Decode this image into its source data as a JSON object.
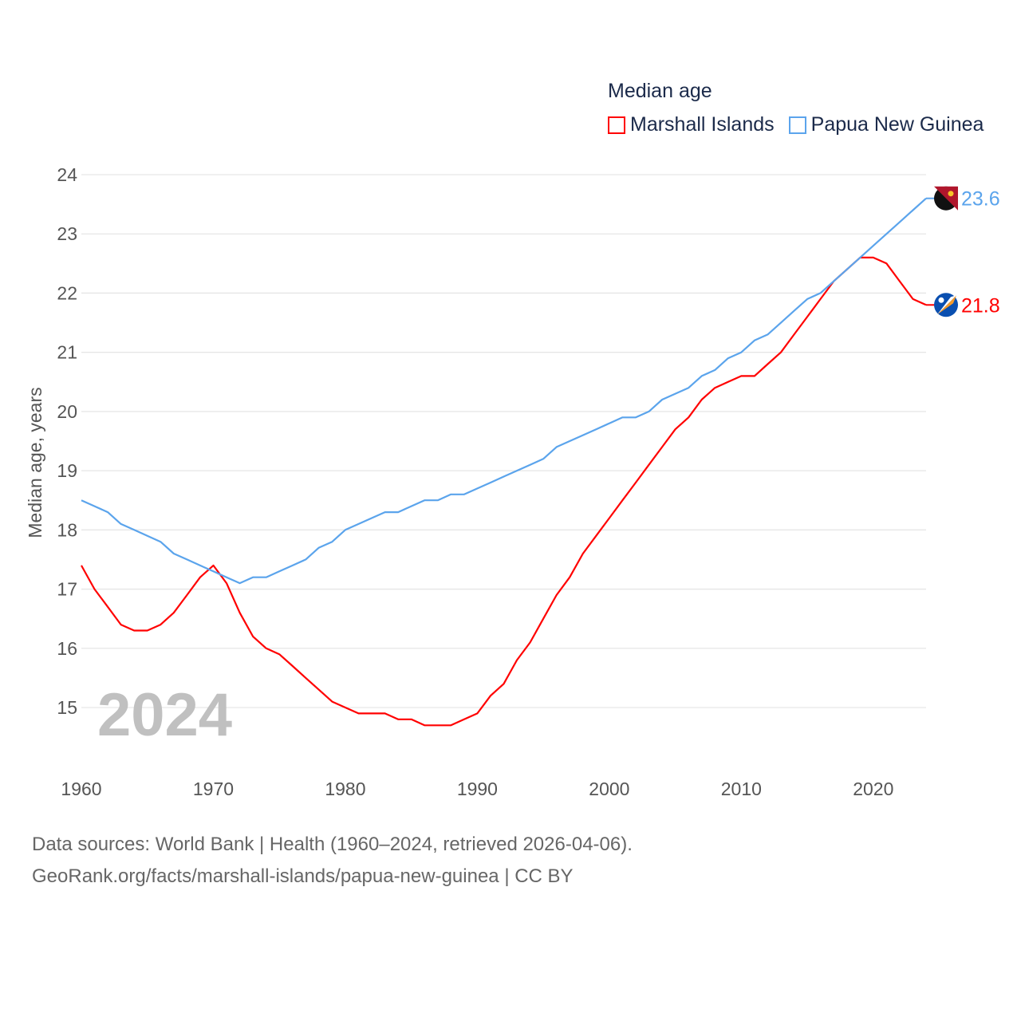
{
  "chart_data": {
    "type": "line",
    "title": "Median age",
    "xlabel": "",
    "ylabel": "Median age, years",
    "xlim": [
      1960,
      2024
    ],
    "ylim": [
      14.2,
      24
    ],
    "yticks": [
      15,
      16,
      17,
      18,
      19,
      20,
      21,
      22,
      23,
      24
    ],
    "xticks": [
      1960,
      1970,
      1980,
      1990,
      2000,
      2010,
      2020
    ],
    "grid": true,
    "legend_placement": "top-right",
    "year_overlay": "2024",
    "x": [
      1960,
      1961,
      1962,
      1963,
      1964,
      1965,
      1966,
      1967,
      1968,
      1969,
      1970,
      1971,
      1972,
      1973,
      1974,
      1975,
      1976,
      1977,
      1978,
      1979,
      1980,
      1981,
      1982,
      1983,
      1984,
      1985,
      1986,
      1987,
      1988,
      1989,
      1990,
      1991,
      1992,
      1993,
      1994,
      1995,
      1996,
      1997,
      1998,
      1999,
      2000,
      2001,
      2002,
      2003,
      2004,
      2005,
      2006,
      2007,
      2008,
      2009,
      2010,
      2011,
      2012,
      2013,
      2014,
      2015,
      2016,
      2017,
      2018,
      2019,
      2020,
      2021,
      2022,
      2023,
      2024
    ],
    "series": [
      {
        "name": "Marshall Islands",
        "color": "#ff0000",
        "end_label": "21.8",
        "values": [
          17.4,
          17.0,
          16.7,
          16.4,
          16.3,
          16.3,
          16.4,
          16.6,
          16.9,
          17.2,
          17.4,
          17.1,
          16.6,
          16.2,
          16.0,
          15.9,
          15.7,
          15.5,
          15.3,
          15.1,
          15.0,
          14.9,
          14.9,
          14.9,
          14.8,
          14.8,
          14.7,
          14.7,
          14.7,
          14.8,
          14.9,
          15.2,
          15.4,
          15.8,
          16.1,
          16.5,
          16.9,
          17.2,
          17.6,
          17.9,
          18.2,
          18.5,
          18.8,
          19.1,
          19.4,
          19.7,
          19.9,
          20.2,
          20.4,
          20.5,
          20.6,
          20.6,
          20.8,
          21.0,
          21.3,
          21.6,
          21.9,
          22.2,
          22.4,
          22.6,
          22.6,
          22.5,
          22.2,
          21.9,
          21.8
        ]
      },
      {
        "name": "Papua New Guinea",
        "color": "#5ba4ec",
        "end_label": "23.6",
        "values": [
          18.5,
          18.4,
          18.3,
          18.1,
          18.0,
          17.9,
          17.8,
          17.6,
          17.5,
          17.4,
          17.3,
          17.2,
          17.1,
          17.2,
          17.2,
          17.3,
          17.4,
          17.5,
          17.7,
          17.8,
          18.0,
          18.1,
          18.2,
          18.3,
          18.3,
          18.4,
          18.5,
          18.5,
          18.6,
          18.6,
          18.7,
          18.8,
          18.9,
          19.0,
          19.1,
          19.2,
          19.4,
          19.5,
          19.6,
          19.7,
          19.8,
          19.9,
          19.9,
          20.0,
          20.2,
          20.3,
          20.4,
          20.6,
          20.7,
          20.9,
          21.0,
          21.2,
          21.3,
          21.5,
          21.7,
          21.9,
          22.0,
          22.2,
          22.4,
          22.6,
          22.8,
          23.0,
          23.2,
          23.4,
          23.6
        ]
      }
    ]
  },
  "footer": {
    "line1": "Data sources: World Bank | Health (1960–2024, retrieved 2026-04-06).",
    "line2": "GeoRank.org/facts/marshall-islands/papua-new-guinea | CC BY"
  }
}
